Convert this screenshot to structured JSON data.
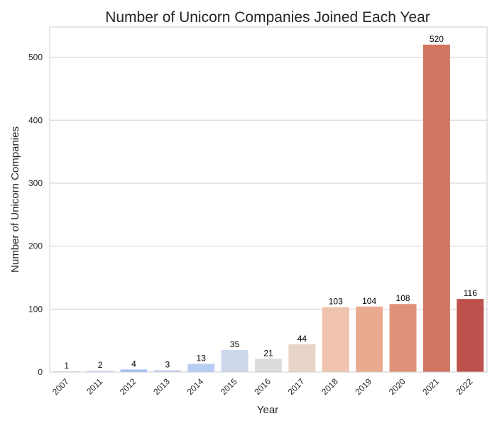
{
  "chart_data": {
    "type": "bar",
    "title": "Number of Unicorn Companies Joined Each Year",
    "xlabel": "Year",
    "ylabel": "Number of Unicorn Companies",
    "categories": [
      "2007",
      "2011",
      "2012",
      "2013",
      "2014",
      "2015",
      "2016",
      "2017",
      "2018",
      "2019",
      "2020",
      "2021",
      "2022"
    ],
    "values": [
      1,
      2,
      4,
      3,
      13,
      35,
      21,
      44,
      103,
      104,
      108,
      520,
      116
    ],
    "colors": [
      "#c9d6f0",
      "#c5d3f2",
      "#a3bdf4",
      "#c4d3ef",
      "#b7cdf4",
      "#cdd8ec",
      "#dddcdc",
      "#e8d4c9",
      "#efc3ae",
      "#eaaa8f",
      "#df9279",
      "#d07562",
      "#bc524b"
    ],
    "ylim": [
      0,
      548
    ],
    "yticks": [
      0,
      100,
      200,
      300,
      400,
      500
    ],
    "grid": true,
    "data_labels": true
  }
}
